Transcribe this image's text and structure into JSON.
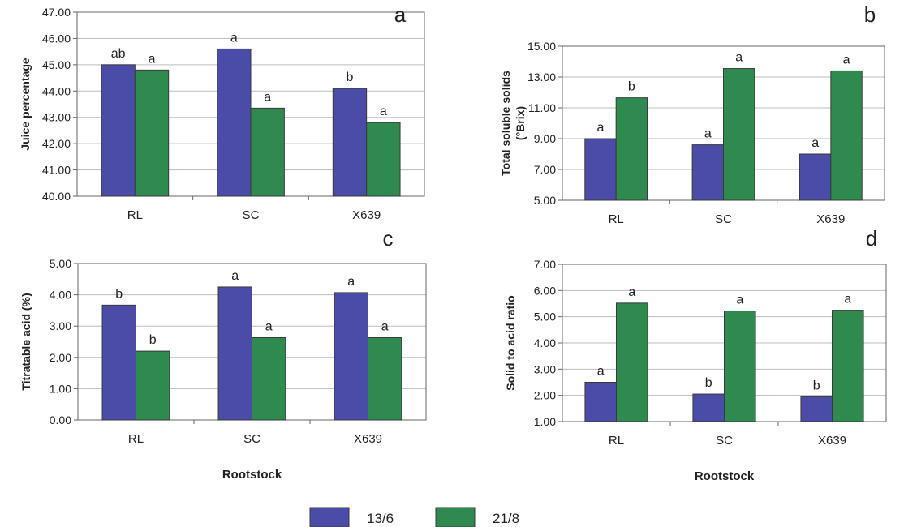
{
  "colors": {
    "s1": "#4b4ba8",
    "s2": "#2e8a4e"
  },
  "legend": [
    {
      "name": "13/6",
      "color": "#4b4ba8"
    },
    {
      "name": "21/8",
      "color": "#2e8a4e"
    }
  ],
  "chart_data": [
    {
      "type": "bar",
      "panel": "a",
      "categories": [
        "RL",
        "SC",
        "X639"
      ],
      "series": [
        {
          "name": "13/6",
          "values": [
            45.0,
            45.6,
            44.1
          ],
          "labels": [
            "ab",
            "a",
            "b"
          ]
        },
        {
          "name": "21/8",
          "values": [
            44.8,
            43.35,
            42.8
          ],
          "labels": [
            "a",
            "a",
            "a"
          ]
        }
      ],
      "ylabel": "Juice percentage",
      "xlabel": "",
      "ylim": [
        40,
        47
      ],
      "yticks": [
        "40.00",
        "41.00",
        "42.00",
        "43.00",
        "44.00",
        "45.00",
        "46.00",
        "47.00"
      ],
      "grid": true
    },
    {
      "type": "bar",
      "panel": "b",
      "categories": [
        "RL",
        "SC",
        "X639"
      ],
      "series": [
        {
          "name": "13/6",
          "values": [
            9.0,
            8.6,
            8.0
          ],
          "labels": [
            "a",
            "a",
            "a"
          ]
        },
        {
          "name": "21/8",
          "values": [
            11.65,
            13.55,
            13.4
          ],
          "labels": [
            "b",
            "a",
            "a"
          ]
        }
      ],
      "ylabel": "Total soluble solids (°Brix)",
      "xlabel": "",
      "ylim": [
        5,
        15
      ],
      "yticks": [
        "5.00",
        "7.00",
        "9.00",
        "11.00",
        "13.00",
        "15.00"
      ],
      "grid": true
    },
    {
      "type": "bar",
      "panel": "c",
      "categories": [
        "RL",
        "SC",
        "X639"
      ],
      "series": [
        {
          "name": "13/6",
          "values": [
            3.67,
            4.25,
            4.07
          ],
          "labels": [
            "b",
            "a",
            "a"
          ]
        },
        {
          "name": "21/8",
          "values": [
            2.2,
            2.63,
            2.63
          ],
          "labels": [
            "b",
            "a",
            "a"
          ]
        }
      ],
      "ylabel": "Titratable acid (%)",
      "xlabel": "Rootstock",
      "ylim": [
        0,
        5
      ],
      "yticks": [
        "0.00",
        "1.00",
        "2.00",
        "3.00",
        "4.00",
        "5.00"
      ],
      "grid": true
    },
    {
      "type": "bar",
      "panel": "d",
      "categories": [
        "RL",
        "SC",
        "X639"
      ],
      "series": [
        {
          "name": "13/6",
          "values": [
            2.5,
            2.05,
            1.95
          ],
          "labels": [
            "a",
            "b",
            "b"
          ]
        },
        {
          "name": "21/8",
          "values": [
            5.52,
            5.22,
            5.25
          ],
          "labels": [
            "a",
            "a",
            "a"
          ]
        }
      ],
      "ylabel": "Solid to acid ratio",
      "xlabel": "Rootstock",
      "ylim": [
        1,
        7
      ],
      "yticks": [
        "1.00",
        "2.00",
        "3.00",
        "4.00",
        "5.00",
        "6.00",
        "7.00"
      ],
      "grid": true
    }
  ]
}
